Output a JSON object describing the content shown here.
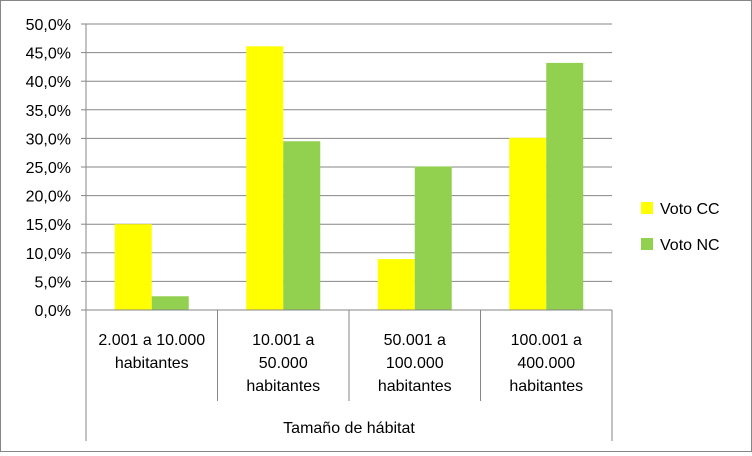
{
  "chart_data": {
    "type": "bar",
    "categories": [
      [
        "2.001 a 10.000",
        "habitantes"
      ],
      [
        "10.001 a",
        "50.000",
        "habitantes"
      ],
      [
        "50.001 a",
        "100.000",
        "habitantes"
      ],
      [
        "100.001 a",
        "400.000",
        "habitantes"
      ]
    ],
    "group_label": "Tamaño de hábitat",
    "series": [
      {
        "name": "Voto CC",
        "color": "#FFFF00",
        "values": [
          15.0,
          46.1,
          8.9,
          30.1
        ]
      },
      {
        "name": "Voto NC",
        "color": "#92D050",
        "values": [
          2.4,
          29.5,
          25.1,
          43.2
        ]
      }
    ],
    "ylim": [
      0,
      50
    ],
    "yticks": [
      0,
      5,
      10,
      15,
      20,
      25,
      30,
      35,
      40,
      45,
      50
    ],
    "ytick_labels": [
      "0,0%",
      "5,0%",
      "10,0%",
      "15,0%",
      "20,0%",
      "25,0%",
      "30,0%",
      "35,0%",
      "40,0%",
      "45,0%",
      "50,0%"
    ],
    "grid": true,
    "legend_position": "right",
    "title": "",
    "xlabel": "",
    "ylabel": ""
  }
}
